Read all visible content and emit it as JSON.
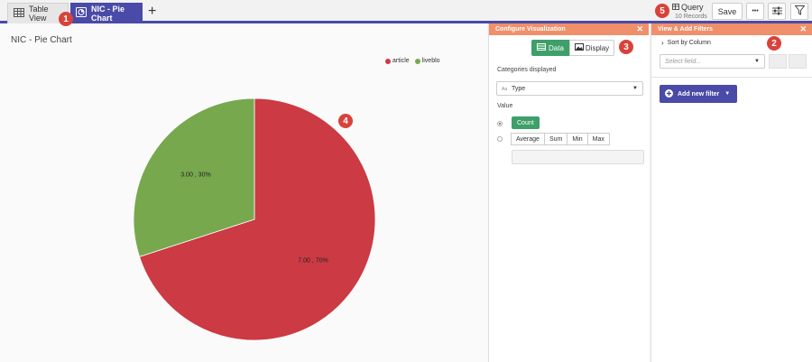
{
  "tabs": [
    {
      "label": "Table View"
    },
    {
      "label": "NIC - Pie Chart"
    }
  ],
  "badges": {
    "b1": "1",
    "b2": "2",
    "b3": "3",
    "b4": "4",
    "b5": "5"
  },
  "toolbar": {
    "query_label": "Query",
    "records_label": "10 Records",
    "save_label": "Save",
    "more_label": "•••"
  },
  "chart": {
    "title": "NIC - Pie Chart",
    "legend": [
      {
        "label": "article",
        "color": "#cc3a44"
      },
      {
        "label": "liveblo",
        "color": "#78a84e"
      }
    ]
  },
  "chart_data": {
    "type": "pie",
    "title": "NIC - Pie Chart",
    "categories": [
      "article",
      "liveblo"
    ],
    "values": [
      7,
      3
    ],
    "data_labels": [
      "7.00 , 70%",
      "3.00 , 30%"
    ],
    "colors": [
      "#cc3a44",
      "#78a84e"
    ],
    "legend": "top-right"
  },
  "config": {
    "title": "Configure Visualization",
    "data_label": "Data",
    "display_label": "Display",
    "categories_label": "Categories displayed",
    "type_value": "Type",
    "type_prefix": "Aa",
    "value_label": "Value",
    "count_label": "Count",
    "agg": [
      "Average",
      "Sum",
      "Min",
      "Max"
    ]
  },
  "filters": {
    "title": "View & Add Filters",
    "sort_label": "Sort by Column",
    "field_placeholder": "Select field...",
    "add_filter_label": "Add new filter"
  }
}
